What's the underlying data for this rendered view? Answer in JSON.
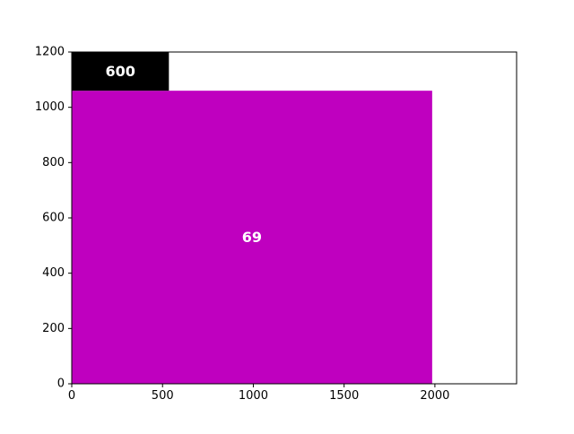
{
  "chart_data": {
    "type": "treemap",
    "title": "",
    "xlabel": "",
    "ylabel": "",
    "xlim": [
      0,
      2450
    ],
    "ylim": [
      0,
      1200
    ],
    "grid": false,
    "x_ticks": [
      0,
      500,
      1000,
      1500,
      2000
    ],
    "y_ticks": [
      0,
      200,
      400,
      600,
      800,
      1000,
      1200
    ],
    "rectangles": [
      {
        "label": "69",
        "x0": 0,
        "y0": 0,
        "x1": 1985,
        "y1": 1060,
        "color": "#bf00bf",
        "text_color": "#ffffff"
      },
      {
        "label": "600",
        "x0": 0,
        "y0": 1060,
        "x1": 535,
        "y1": 1200,
        "color": "#000000",
        "text_color": "#ffffff"
      }
    ]
  }
}
